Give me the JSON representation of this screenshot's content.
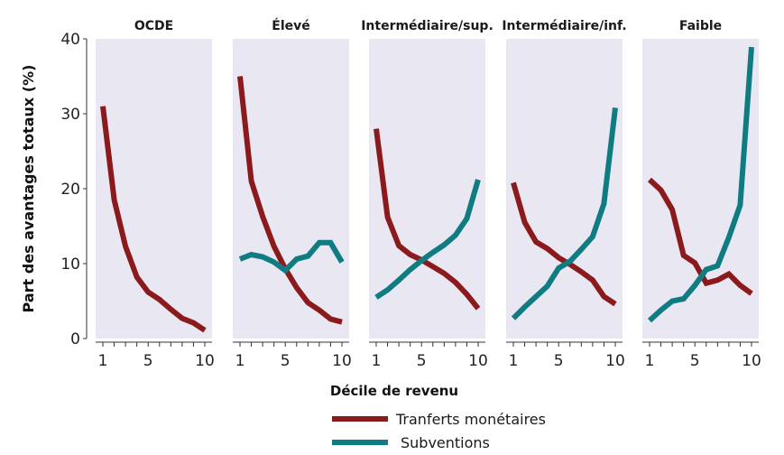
{
  "chart_data": {
    "type": "line",
    "ylabel": "Part des avantages totaux (%)",
    "xlabel": "Décile de revenu",
    "ylim": [
      0,
      40
    ],
    "yticks": [
      0,
      10,
      20,
      30,
      40
    ],
    "xlim": [
      1,
      10
    ],
    "xticks": [
      1,
      5,
      10
    ],
    "grid": false,
    "legend_position": "bottom",
    "colors": {
      "transfers": "#8b1a1d",
      "subsidies": "#0f7c82",
      "panel_bg": "#e9e7f2"
    },
    "series_names": {
      "transfers": "Tranferts monétaires",
      "subsidies": "Subventions"
    },
    "panels": [
      {
        "title": "OCDE",
        "transfers": [
          31,
          18.5,
          12.3,
          8.2,
          6.2,
          5.2,
          3.9,
          2.7,
          2.1,
          1.1
        ],
        "subsidies": null
      },
      {
        "title": "Élevé",
        "transfers": [
          35,
          21,
          16.3,
          12.3,
          9.3,
          6.8,
          4.8,
          3.8,
          2.6,
          2.2
        ],
        "subsidies": [
          10.6,
          11.2,
          10.9,
          10.2,
          9.1,
          10.6,
          11.0,
          12.8,
          12.8,
          10.2
        ]
      },
      {
        "title": "Intermédiaire/sup.",
        "transfers": [
          28,
          16.2,
          12.4,
          11.2,
          10.5,
          9.6,
          8.7,
          7.5,
          5.9,
          4.0
        ],
        "subsidies": [
          5.5,
          6.5,
          7.8,
          9.2,
          10.4,
          11.5,
          12.5,
          13.8,
          16.0,
          21.2
        ]
      },
      {
        "title": "Intermédiaire/inf.",
        "transfers": [
          20.8,
          15.5,
          12.9,
          12.0,
          10.8,
          9.9,
          8.9,
          7.8,
          5.6,
          4.6
        ],
        "subsidies": [
          2.7,
          4.2,
          5.6,
          7.0,
          9.4,
          10.3,
          11.9,
          13.6,
          18.0,
          30.8
        ]
      },
      {
        "title": "Faible",
        "transfers": [
          21.2,
          19.8,
          17.2,
          11.1,
          10.1,
          7.4,
          7.8,
          8.6,
          7.1,
          6.0
        ],
        "subsidies": [
          2.4,
          3.8,
          5.0,
          5.3,
          7.1,
          9.2,
          9.7,
          13.5,
          17.8,
          38.9
        ]
      }
    ]
  }
}
